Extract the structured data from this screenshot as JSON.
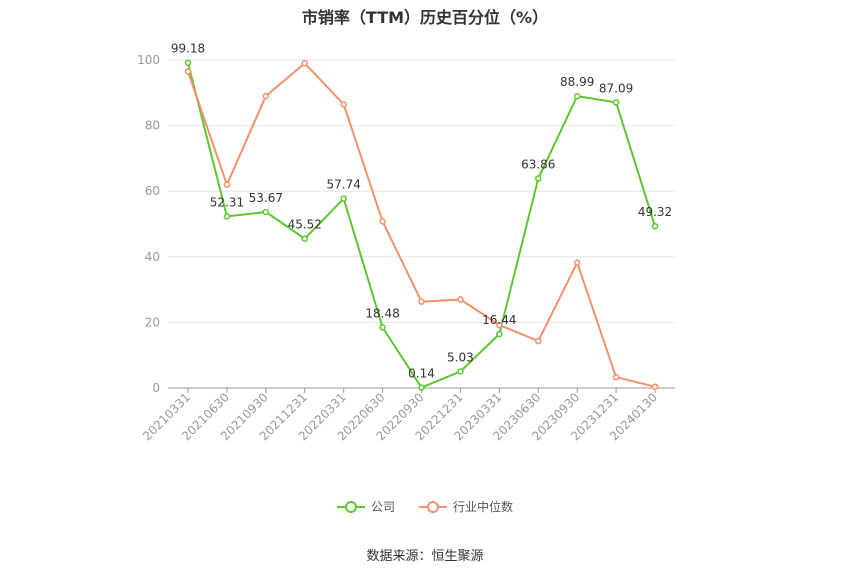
{
  "colors": {
    "company": "#5cc72e",
    "industry": "#f4906a",
    "grid": "#e6e6e6",
    "axis": "#999999"
  },
  "source": "数据来源：恒生聚源",
  "chart_data": {
    "type": "line",
    "title": "市销率（TTM）历史百分位（%）",
    "categories": [
      "20210331",
      "20210630",
      "20210930",
      "20211231",
      "20220331",
      "20220630",
      "20220930",
      "20221231",
      "20230331",
      "20230630",
      "20230930",
      "20231231",
      "20240130"
    ],
    "y_ticks": [
      0,
      20,
      40,
      60,
      80,
      100
    ],
    "ylim": [
      0,
      100
    ],
    "grid": true,
    "legend_position": "bottom",
    "series": [
      {
        "name": "公司",
        "values": [
          99.18,
          52.31,
          53.67,
          45.52,
          57.74,
          18.48,
          0.14,
          5.03,
          16.44,
          63.86,
          88.99,
          87.09,
          49.32
        ],
        "labeled": true
      },
      {
        "name": "行业中位数",
        "values": [
          96.5,
          62.0,
          89.0,
          99.0,
          86.5,
          50.8,
          26.3,
          27.0,
          19.2,
          14.3,
          38.2,
          3.3,
          0.4
        ],
        "labeled": false
      }
    ]
  }
}
